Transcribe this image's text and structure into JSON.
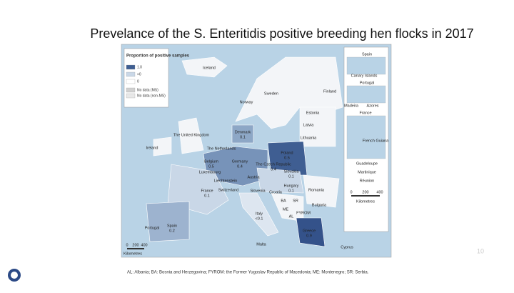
{
  "title": "Prevelance of the S. Enteritidis positive breeding hen flocks in 2017",
  "legend": {
    "title": "Proportion of positive samples",
    "items": [
      "1.0",
      ">0",
      "0",
      "No data (MS)",
      "No data (non-MS)"
    ]
  },
  "countries": [
    {
      "name": "Iceland"
    },
    {
      "name": "Sweden"
    },
    {
      "name": "Finland"
    },
    {
      "name": "Norway"
    },
    {
      "name": "Estonia"
    },
    {
      "name": "Latvia"
    },
    {
      "name": "Lithuania"
    },
    {
      "name": "Denmark",
      "value": "0.1"
    },
    {
      "name": "The United Kingdom"
    },
    {
      "name": "Ireland"
    },
    {
      "name": "The Netherlands"
    },
    {
      "name": "Poland",
      "value": "0.5"
    },
    {
      "name": "Belgium",
      "value": "0.5"
    },
    {
      "name": "Germany",
      "value": "0.4"
    },
    {
      "name": "The Czech Republic",
      "value": "0.4"
    },
    {
      "name": "Slovakia",
      "value": "0.1"
    },
    {
      "name": "Luxembourg"
    },
    {
      "name": "Austria"
    },
    {
      "name": "Liechtenstein"
    },
    {
      "name": "Hungary",
      "value": "0.1"
    },
    {
      "name": "Romania"
    },
    {
      "name": "Switzerland"
    },
    {
      "name": "France",
      "value": "0.1"
    },
    {
      "name": "Slovenia"
    },
    {
      "name": "Croatia"
    },
    {
      "name": "BA"
    },
    {
      "name": "SR"
    },
    {
      "name": "Bulgaria"
    },
    {
      "name": "ME"
    },
    {
      "name": "AL"
    },
    {
      "name": "FYROM"
    },
    {
      "name": "Italy",
      "value": "<0.1"
    },
    {
      "name": "Spain",
      "value": "0.2"
    },
    {
      "name": "Portugal"
    },
    {
      "name": "Greece",
      "value": "0.9"
    },
    {
      "name": "Malta"
    },
    {
      "name": "Cyprus"
    }
  ],
  "insets": [
    "Spain",
    "Canary Islands",
    "Portugal",
    "Madeira",
    "Azores",
    "France",
    "French Guiana",
    "Guadeloupe",
    "Martinique",
    "Réunion"
  ],
  "scale": [
    "0",
    "200",
    "400",
    "Kilometres"
  ],
  "inset_scale": [
    "0",
    "200",
    "400",
    "Kilometres"
  ],
  "footnote": "AL: Albania; BA: Bosnia and Herzegovina; FYROM: the Former Yugoslav Republic of Macedonia; ME: Montenegro; SR: Serbia.",
  "page_number": "10"
}
